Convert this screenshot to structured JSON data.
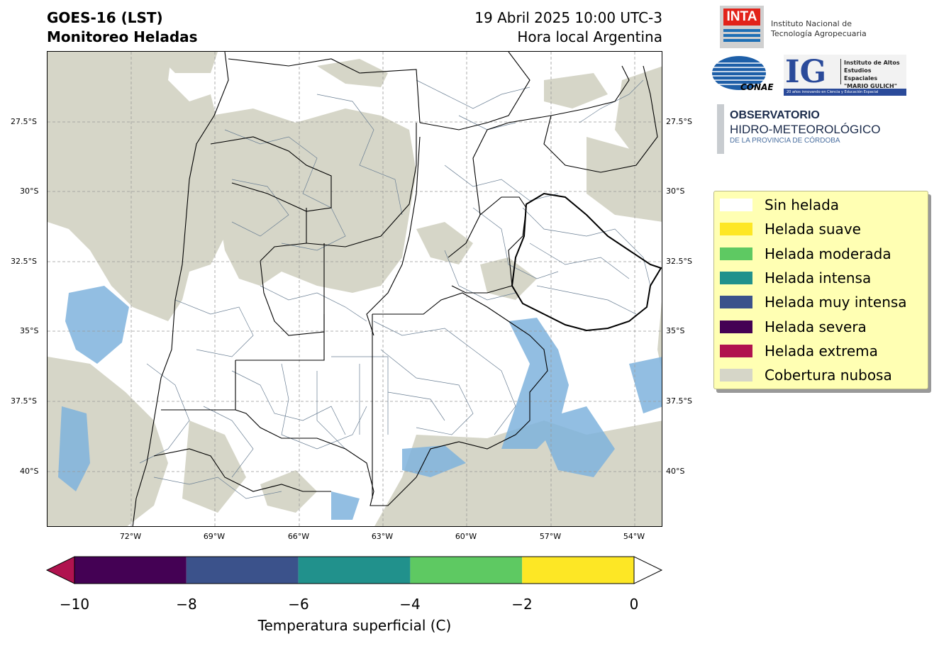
{
  "header": {
    "title_line1": "GOES-16 (LST)",
    "title_line2": "Monitoreo Heladas",
    "date_line": "19 Abril 2025 10:00 UTC-3",
    "local_line": "Hora local Argentina"
  },
  "map": {
    "lat_ticks": [
      "27.5°S",
      "30°S",
      "32.5°S",
      "35°S",
      "37.5°S",
      "40°S"
    ],
    "lon_ticks": [
      "72°W",
      "69°W",
      "66°W",
      "63°W",
      "60°W",
      "57°W",
      "54°W"
    ],
    "grid": true,
    "colors": {
      "cloud": "#d6d6c8",
      "water": "#7fb3dd",
      "border": "#000000",
      "department": "#6a7f94"
    }
  },
  "logos": {
    "inta": {
      "acronym": "INTA",
      "line1": "Instituto Nacional de",
      "line2": "Tecnología Agropecuaria"
    },
    "conae": {
      "text": "CONAE"
    },
    "ig": {
      "acronym": "IG",
      "line1": "Instituto de Altos",
      "line2": "Estudios Espaciales",
      "line3": "\"MARIO GULICH\"",
      "banner": "20 años innovando en Ciencia y Educación Espacial"
    },
    "observatorio": {
      "line1": "OBSERVATORIO",
      "line2": "HIDRO-METEOROLÓGICO",
      "line3": "DE LA PROVINCIA DE CÓRDOBA"
    }
  },
  "legend": [
    {
      "label": "Sin helada",
      "color": "#ffffff"
    },
    {
      "label": "Helada suave",
      "color": "#fde725"
    },
    {
      "label": "Helada moderada",
      "color": "#5ec962"
    },
    {
      "label": "Helada intensa",
      "color": "#21918c"
    },
    {
      "label": "Helada muy intensa",
      "color": "#3b528b"
    },
    {
      "label": "Helada severa",
      "color": "#440154"
    },
    {
      "label": "Helada extrema",
      "color": "#b0134f"
    },
    {
      "label": "Cobertura nubosa",
      "color": "#d6d6c8"
    }
  ],
  "colorbar": {
    "ticks": [
      "−10",
      "−8",
      "−6",
      "−4",
      "−2",
      "0"
    ],
    "label": "Temperatura superficial (C)",
    "colors": [
      "#440154",
      "#3b528b",
      "#21918c",
      "#5ec962",
      "#fde725"
    ],
    "under_color": "#b0134f",
    "over_color": "#ffffff"
  }
}
